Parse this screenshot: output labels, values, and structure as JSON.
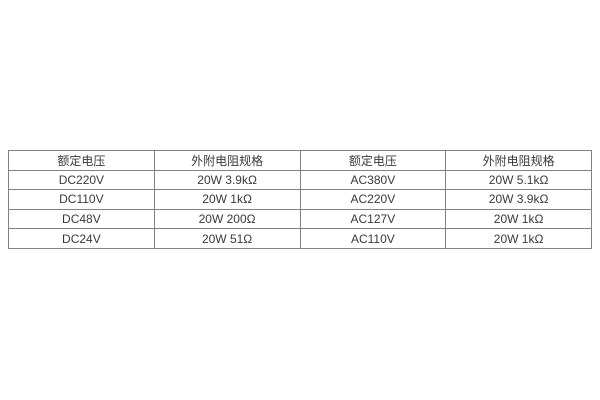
{
  "table": {
    "headers": [
      "额定电压",
      "外附电阻规格",
      "额定电压",
      "外附电阻规格"
    ],
    "rows": [
      [
        "DC220V",
        "20W 3.9kΩ",
        "AC380V",
        "20W 5.1kΩ"
      ],
      [
        "DC110V",
        "20W 1kΩ",
        "AC220V",
        "20W 3.9kΩ"
      ],
      [
        "DC48V",
        "20W 200Ω",
        "AC127V",
        "20W 1kΩ"
      ],
      [
        "DC24V",
        "20W 51Ω",
        "AC110V",
        "20W 1kΩ"
      ]
    ],
    "border_color": "#828282",
    "text_color": "#3a3a3a",
    "background_color": "#ffffff"
  }
}
